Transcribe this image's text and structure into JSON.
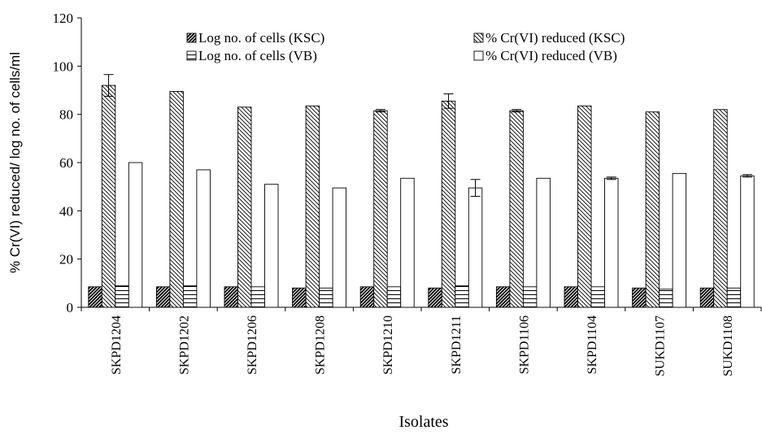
{
  "chart_data": {
    "type": "bar",
    "xlabel": "Isolates",
    "ylabel": "% Cr(VI) reduced/ log no. of cells/ml",
    "ylim": [
      0,
      120
    ],
    "yticks": [
      "0",
      "20",
      "40",
      "60",
      "80",
      "100",
      "120"
    ],
    "grid": false,
    "legend_position": "top",
    "categories": [
      "SKPD1204",
      "SKPD1202",
      "SKPD1206",
      "SKPD1208",
      "SKPD1210",
      "SKPD1211",
      "SKPD1106",
      "SKPD1104",
      "SUKD1107",
      "SUKD1108"
    ],
    "series": [
      {
        "name": "Log no. of cells (KSC)",
        "pattern": "diag-dense",
        "values": [
          8.5,
          8.5,
          8.5,
          8,
          8.5,
          8,
          8.5,
          8.5,
          8,
          8
        ],
        "errors": [
          0,
          0,
          0,
          0,
          0,
          0,
          0,
          0,
          0,
          0
        ]
      },
      {
        "name": "% Cr(VI) reduced (KSC)",
        "pattern": "diag-light",
        "values": [
          92,
          89.5,
          83,
          83.5,
          81.5,
          85.5,
          81.5,
          83.5,
          81,
          82
        ],
        "errors": [
          4.5,
          0,
          0,
          0,
          0.5,
          3,
          0.5,
          0,
          0,
          0
        ]
      },
      {
        "name": "Log no. of cells (VB)",
        "pattern": "horizontal",
        "values": [
          9,
          9,
          8.5,
          8,
          8.5,
          9,
          8.5,
          8.5,
          7.5,
          8
        ],
        "errors": [
          0,
          0,
          0,
          0,
          0,
          0,
          0,
          0,
          0,
          0
        ]
      },
      {
        "name": "% Cr(VI) reduced (VB)",
        "pattern": "white",
        "values": [
          60,
          57,
          51,
          49.5,
          53.5,
          49.5,
          53.5,
          53.5,
          55.5,
          54.5
        ],
        "errors": [
          0,
          0,
          0,
          0,
          0,
          3.5,
          0,
          0.5,
          0,
          0.5
        ]
      }
    ]
  }
}
